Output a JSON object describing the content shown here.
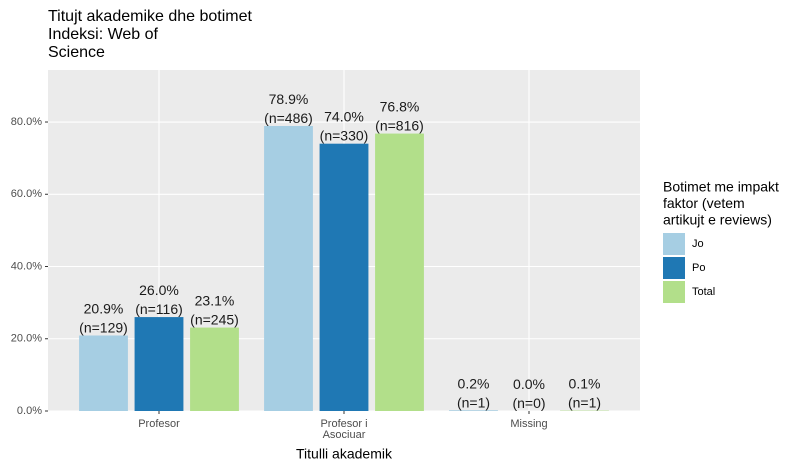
{
  "chart_data": {
    "type": "bar",
    "title": [
      "Titujt akademike dhe botimet",
      "Indeksi: Web of",
      "Science"
    ],
    "x_label": "Titulli akademik",
    "legend_title": [
      "Botimet me impakt",
      "faktor (vetem",
      "artikujt e reviews)"
    ],
    "categories": [
      "Profesor",
      "Profesor i\nAsociuar",
      "Missing"
    ],
    "series": [
      {
        "name": "Jo",
        "color": "#a6cee3",
        "values": [
          20.9,
          78.9,
          0.2
        ],
        "value_labels": [
          "20.9%\n(n=129)",
          "78.9%\n(n=486)",
          "0.2%\n(n=1)"
        ]
      },
      {
        "name": "Po",
        "color": "#1f78b4",
        "values": [
          26.0,
          74.0,
          0.0
        ],
        "value_labels": [
          "26.0%\n(n=116)",
          "74.0%\n(n=330)",
          "0.0%\n(n=0)"
        ]
      },
      {
        "name": "Total",
        "color": "#b2df8a",
        "values": [
          23.1,
          76.8,
          0.1
        ],
        "value_labels": [
          "23.1%\n(n=245)",
          "76.8%\n(n=816)",
          "0.1%\n(n=1)"
        ]
      }
    ],
    "ylim": [
      0,
      94.4
    ],
    "yticks": [
      {
        "value": 0,
        "label": "0.0%"
      },
      {
        "value": 20,
        "label": "20.0%"
      },
      {
        "value": 40,
        "label": "40.0%"
      },
      {
        "value": 60,
        "label": "60.0%"
      },
      {
        "value": 80,
        "label": "80.0%"
      }
    ],
    "grid": true,
    "legend": "right"
  }
}
